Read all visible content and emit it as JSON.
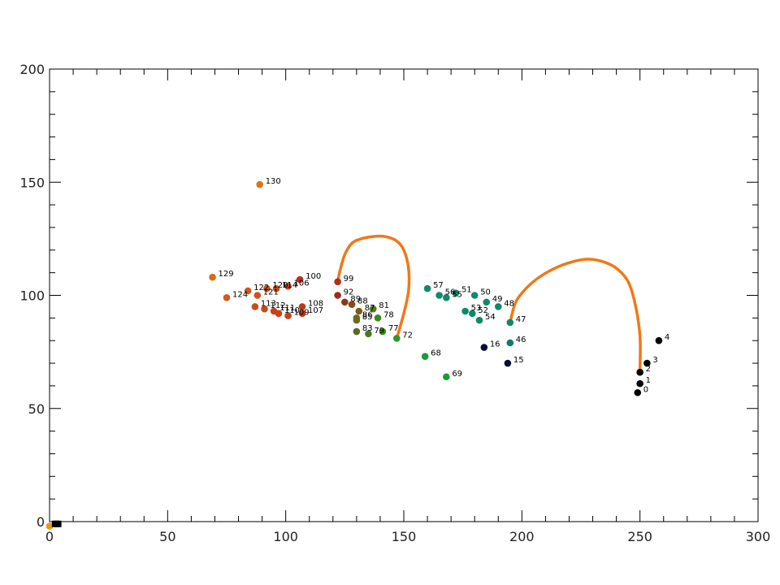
{
  "chart_data": {
    "type": "scatter",
    "title": "",
    "xlabel": "",
    "ylabel": "",
    "xlim": [
      0,
      300
    ],
    "ylim": [
      0,
      200
    ],
    "x_ticks": [
      0,
      50,
      100,
      150,
      200,
      250,
      300
    ],
    "y_ticks": [
      0,
      50,
      100,
      150,
      200
    ],
    "x_minor_step": 10,
    "y_minor_step": 10,
    "grid": false,
    "legend": "none",
    "points": [
      {
        "label": "0",
        "x": 249,
        "y": 57,
        "color": "#000000"
      },
      {
        "label": "1",
        "x": 250,
        "y": 61,
        "color": "#000000"
      },
      {
        "label": "2",
        "x": 250,
        "y": 66,
        "color": "#000000"
      },
      {
        "label": "3",
        "x": 253,
        "y": 70,
        "color": "#000000"
      },
      {
        "label": "4",
        "x": 258,
        "y": 80,
        "color": "#000000"
      },
      {
        "label": "15",
        "x": 194,
        "y": 70,
        "color": "#0a0a3c"
      },
      {
        "label": "16",
        "x": 184,
        "y": 77,
        "color": "#0a0a3c"
      },
      {
        "label": "46",
        "x": 195,
        "y": 79,
        "color": "#0d7a6a"
      },
      {
        "label": "47",
        "x": 195,
        "y": 88,
        "color": "#0d8a6a"
      },
      {
        "label": "48",
        "x": 190,
        "y": 95,
        "color": "#0d8a6a"
      },
      {
        "label": "49",
        "x": 185,
        "y": 97,
        "color": "#0d8a6a"
      },
      {
        "label": "50",
        "x": 180,
        "y": 100,
        "color": "#0d8a6a"
      },
      {
        "label": "51",
        "x": 172,
        "y": 101,
        "color": "#0d8a6a"
      },
      {
        "label": "52",
        "x": 179,
        "y": 92,
        "color": "#0d8a6a"
      },
      {
        "label": "53",
        "x": 176,
        "y": 93,
        "color": "#0d8a6a"
      },
      {
        "label": "54",
        "x": 182,
        "y": 89,
        "color": "#0d8a6a"
      },
      {
        "label": "55",
        "x": 168,
        "y": 99,
        "color": "#0d8a6a"
      },
      {
        "label": "56",
        "x": 165,
        "y": 100,
        "color": "#0d8a6a"
      },
      {
        "label": "57",
        "x": 160,
        "y": 103,
        "color": "#0d8a6a"
      },
      {
        "label": "68",
        "x": 159,
        "y": 73,
        "color": "#1a9a3a"
      },
      {
        "label": "69",
        "x": 168,
        "y": 64,
        "color": "#1a9a3a"
      },
      {
        "label": "72",
        "x": 147,
        "y": 81,
        "color": "#2a9a2a"
      },
      {
        "label": "77",
        "x": 141,
        "y": 84,
        "color": "#3a8a1a"
      },
      {
        "label": "78",
        "x": 139,
        "y": 90,
        "color": "#3a8a1a"
      },
      {
        "label": "79",
        "x": 135,
        "y": 83,
        "color": "#4a7a1a"
      },
      {
        "label": "81",
        "x": 137,
        "y": 94,
        "color": "#4a7a1a"
      },
      {
        "label": "83",
        "x": 130,
        "y": 84,
        "color": "#5a6a1a"
      },
      {
        "label": "85",
        "x": 130,
        "y": 89,
        "color": "#6a6a1a"
      },
      {
        "label": "86",
        "x": 130,
        "y": 90,
        "color": "#6a6a1a"
      },
      {
        "label": "87",
        "x": 131,
        "y": 93,
        "color": "#7a5a1a"
      },
      {
        "label": "88",
        "x": 128,
        "y": 96,
        "color": "#8a4a1a"
      },
      {
        "label": "89",
        "x": 125,
        "y": 97,
        "color": "#8a3a1a"
      },
      {
        "label": "92",
        "x": 122,
        "y": 100,
        "color": "#a02a1a"
      },
      {
        "label": "99",
        "x": 122,
        "y": 106,
        "color": "#b52a1a"
      },
      {
        "label": "100",
        "x": 106,
        "y": 107,
        "color": "#c0301a"
      },
      {
        "label": "106",
        "x": 101,
        "y": 104,
        "color": "#c03a1a"
      },
      {
        "label": "107",
        "x": 107,
        "y": 92,
        "color": "#c03a1a"
      },
      {
        "label": "108",
        "x": 107,
        "y": 95,
        "color": "#c03a1a"
      },
      {
        "label": "109",
        "x": 101,
        "y": 91,
        "color": "#c8401a"
      },
      {
        "label": "110",
        "x": 97,
        "y": 92,
        "color": "#c8401a"
      },
      {
        "label": "111",
        "x": 95,
        "y": 93,
        "color": "#c8401a"
      },
      {
        "label": "112",
        "x": 91,
        "y": 94,
        "color": "#c8481a"
      },
      {
        "label": "113",
        "x": 87,
        "y": 95,
        "color": "#cc4a1a"
      },
      {
        "label": "114",
        "x": 96,
        "y": 103,
        "color": "#cc4a1a"
      },
      {
        "label": "120",
        "x": 92,
        "y": 103,
        "color": "#cc501a"
      },
      {
        "label": "121",
        "x": 88,
        "y": 100,
        "color": "#d0501a"
      },
      {
        "label": "122",
        "x": 84,
        "y": 102,
        "color": "#d0561a"
      },
      {
        "label": "124",
        "x": 75,
        "y": 99,
        "color": "#d4581a"
      },
      {
        "label": "129",
        "x": 69,
        "y": 108,
        "color": "#e0661a"
      },
      {
        "label": "130",
        "x": 89,
        "y": 149,
        "color": "#e0721a"
      },
      {
        "label": "",
        "x": 0,
        "y": -2,
        "color": "#e8a000"
      }
    ],
    "axis_markers": [
      {
        "x": 2,
        "y": -1,
        "color": "#000000"
      },
      {
        "x": 3,
        "y": -1,
        "color": "#000000"
      },
      {
        "x": 4,
        "y": -1,
        "color": "#000000"
      }
    ],
    "curves": [
      {
        "color": "#f07818",
        "points": [
          [
            122,
            106
          ],
          [
            123,
            111
          ],
          [
            125,
            118
          ],
          [
            128,
            123
          ],
          [
            132,
            125
          ],
          [
            137,
            126
          ],
          [
            142,
            126
          ],
          [
            147,
            124
          ],
          [
            150,
            120
          ],
          [
            152,
            112
          ],
          [
            152,
            102
          ],
          [
            150,
            92
          ],
          [
            147,
            81
          ]
        ]
      },
      {
        "color": "#f07818",
        "points": [
          [
            195,
            88
          ],
          [
            197,
            96
          ],
          [
            200,
            101
          ],
          [
            206,
            107
          ],
          [
            214,
            112
          ],
          [
            222,
            115
          ],
          [
            228,
            116
          ],
          [
            234,
            115
          ],
          [
            240,
            112
          ],
          [
            245,
            106
          ],
          [
            248,
            96
          ],
          [
            250,
            82
          ],
          [
            250,
            67
          ]
        ]
      }
    ]
  }
}
